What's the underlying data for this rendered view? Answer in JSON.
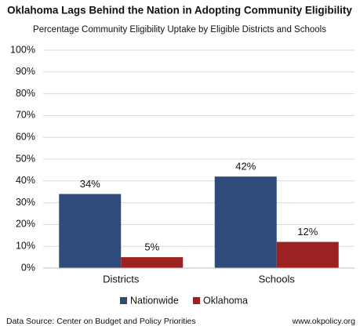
{
  "chart_data": {
    "type": "bar",
    "title": "Oklahoma Lags Behind the Nation in Adopting Community Eligibility",
    "subtitle": "Percentage Community Eligibility Uptake by Eligible Districts and Schools",
    "categories": [
      "Districts",
      "Schools"
    ],
    "series": [
      {
        "name": "Nationwide",
        "color": "#2e4b7c",
        "values": [
          34,
          42
        ],
        "value_labels": [
          "34%",
          "42%"
        ]
      },
      {
        "name": "Oklahoma",
        "color": "#9c2121",
        "values": [
          5,
          12
        ],
        "value_labels": [
          "5%",
          "12%"
        ]
      }
    ],
    "ylim": [
      0,
      100
    ],
    "yticks": [
      {
        "value": 0,
        "label": "0%"
      },
      {
        "value": 10,
        "label": "10%"
      },
      {
        "value": 20,
        "label": "20%"
      },
      {
        "value": 30,
        "label": "30%"
      },
      {
        "value": 40,
        "label": "40%"
      },
      {
        "value": 50,
        "label": "50%"
      },
      {
        "value": 60,
        "label": "60%"
      },
      {
        "value": 70,
        "label": "70%"
      },
      {
        "value": 80,
        "label": "80%"
      },
      {
        "value": 90,
        "label": "90%"
      },
      {
        "value": 100,
        "label": "100%"
      }
    ],
    "grid": true,
    "legend": "bottom",
    "source": "Data Source: Center on Budget and Policy Priorities",
    "website": "www.okpolicy.org"
  }
}
